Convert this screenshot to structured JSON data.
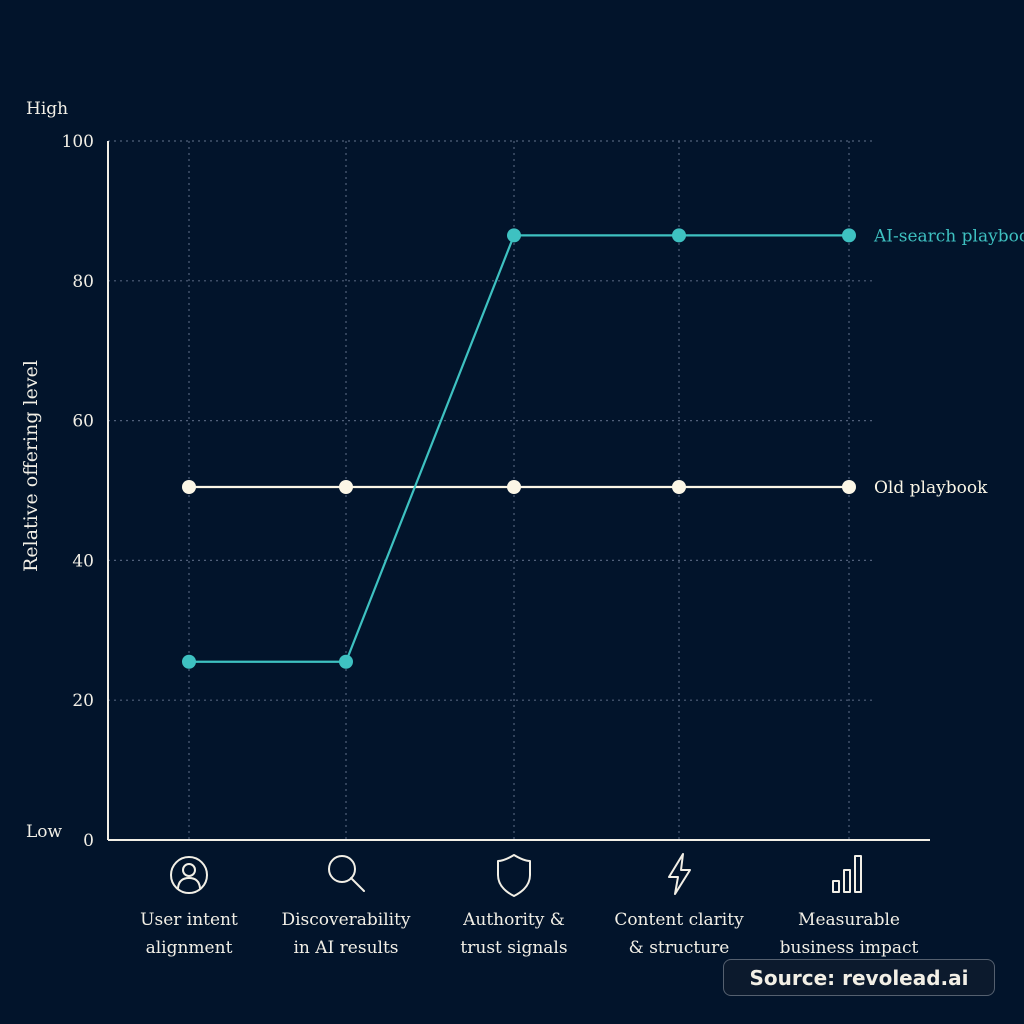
{
  "chart_data": {
    "type": "line",
    "title": "",
    "ylabel": "Relative offering level",
    "xlabel": "",
    "ylim": [
      0,
      100
    ],
    "yticks": [
      0,
      20,
      40,
      60,
      80,
      100
    ],
    "y_high_label": "High",
    "y_low_label": "Low",
    "grid": true,
    "categories": [
      "User intent alignment",
      "Discoverability in AI results",
      "Authority & trust signals",
      "Content clarity & structure",
      "Measurable business impact"
    ],
    "category_lines": [
      [
        "User intent",
        "alignment"
      ],
      [
        "Discoverability",
        "in AI results"
      ],
      [
        "Authority &",
        "trust signals"
      ],
      [
        "Content clarity",
        "& structure"
      ],
      [
        "Measurable",
        "business impact"
      ]
    ],
    "category_icons": [
      "user-icon",
      "search-icon",
      "shield-icon",
      "lightning-icon",
      "bar-chart-icon"
    ],
    "series": [
      {
        "name": "AI-search playbook",
        "color": "#3ec1c1",
        "values": [
          25.5,
          25.5,
          86.5,
          86.5,
          86.5
        ]
      },
      {
        "name": "Old playbook",
        "color": "#fbf6e6",
        "values": [
          50.5,
          50.5,
          50.5,
          50.5,
          50.5
        ]
      }
    ],
    "legend_placement": "end-of-line labels"
  },
  "source": "Source: revolead.ai"
}
